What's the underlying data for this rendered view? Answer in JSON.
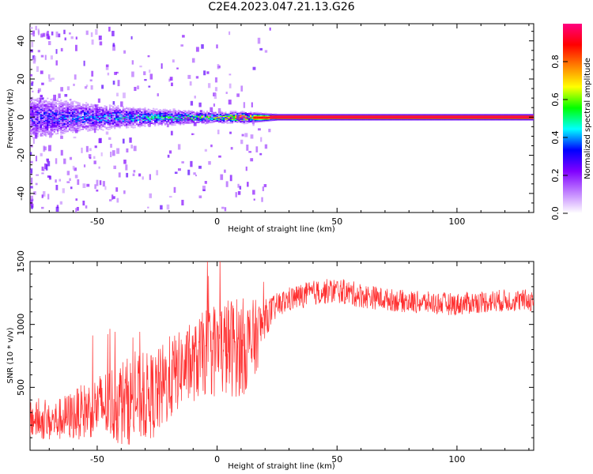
{
  "title": "C2E4.2023.047.21.13.G26",
  "chart_data": [
    {
      "type": "heatmap",
      "xlabel": "Height of straight line (km)",
      "ylabel": "Frequency (Hz)",
      "xlim": [
        -78,
        132
      ],
      "ylim": [
        -50,
        49
      ],
      "x_ticks": [
        -50,
        0,
        50,
        100
      ],
      "y_ticks": [
        -40,
        -20,
        0,
        20,
        40
      ],
      "colorbar": {
        "label": "Normalized spectral amplitude",
        "range": [
          0,
          1
        ],
        "ticks": [
          0.0,
          0.2,
          0.4,
          0.6,
          0.8
        ],
        "tick_labels": [
          "0.0",
          "0.2",
          "0.4",
          "0.6",
          "0.8"
        ],
        "colormap": [
          "#ffffff",
          "#c080ff",
          "#8000ff",
          "#0000ff",
          "#00ffff",
          "#00ff00",
          "#ffff00",
          "#ff8000",
          "#ff0000",
          "#ff0080"
        ]
      },
      "spectral_band": {
        "center_hz": 0,
        "description_points": [
          {
            "x": -75,
            "halfwidth_hz": 8,
            "amplitude": 0.3
          },
          {
            "x": -50,
            "halfwidth_hz": 5,
            "amplitude": 0.35
          },
          {
            "x": -25,
            "halfwidth_hz": 3,
            "amplitude": 0.45
          },
          {
            "x": 0,
            "halfwidth_hz": 2,
            "amplitude": 0.55
          },
          {
            "x": 10,
            "halfwidth_hz": 2,
            "amplitude": 0.85
          },
          {
            "x": 25,
            "halfwidth_hz": 1,
            "amplitude": 1.0
          },
          {
            "x": 130,
            "halfwidth_hz": 1,
            "amplitude": 1.0
          }
        ]
      }
    },
    {
      "type": "line",
      "xlabel": "Height of straight line (km)",
      "ylabel": "SNR (10 * v/v)",
      "xlim": [
        -78,
        132
      ],
      "ylim": [
        0,
        1500
      ],
      "x_ticks": [
        -50,
        0,
        50,
        100
      ],
      "y_ticks": [
        500,
        1000,
        1500
      ],
      "series": [
        {
          "color": "#ff3030",
          "x": [
            -78,
            -70,
            -60,
            -50,
            -40,
            -30,
            -25,
            -20,
            -15,
            -10,
            -5,
            0,
            5,
            10,
            15,
            20,
            25,
            30,
            40,
            50,
            60,
            70,
            80,
            90,
            100,
            110,
            120,
            132
          ],
          "y": [
            250,
            220,
            280,
            350,
            380,
            420,
            450,
            560,
            650,
            680,
            780,
            800,
            820,
            820,
            850,
            1050,
            1150,
            1200,
            1250,
            1270,
            1230,
            1200,
            1180,
            1170,
            1160,
            1180,
            1190,
            1190
          ],
          "spread": [
            150,
            150,
            200,
            250,
            350,
            350,
            350,
            350,
            300,
            300,
            350,
            400,
            400,
            400,
            350,
            150,
            100,
            100,
            100,
            100,
            100,
            90,
            90,
            90,
            90,
            90,
            90,
            90
          ]
        }
      ]
    }
  ]
}
